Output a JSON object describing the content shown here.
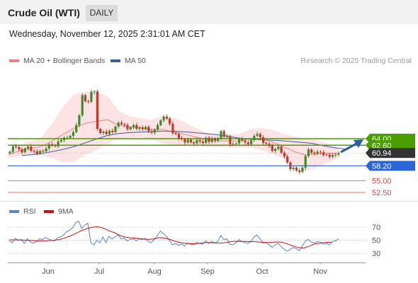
{
  "header": {
    "title": "Crude Oil (WTI)",
    "timeframe": "DAILY",
    "datetime": "Wednesday, November 12, 2025 2:31:01 AM CET"
  },
  "legend": {
    "bollinger": "MA 20 + Bollinger Bands",
    "ma50": "MA 50",
    "rsi": "RSI",
    "ma9": "9MA",
    "credit": "Research © 2025 Trading Central"
  },
  "colors": {
    "bollinger": "#f08080",
    "band_fill": "#fde3e3",
    "ma50": "#3a5fa0",
    "resistance": "#4a9e00",
    "support": "#2b66d9",
    "target": "#e04040",
    "current": "#333333",
    "rsi": "#5b80d0",
    "rsi_ma": "#d01010",
    "candle_up": "#3c8a2a",
    "candle_down": "#c0392b"
  },
  "chart_data": [
    {
      "type": "candlestick",
      "title": "",
      "x_months": [
        "Jun",
        "Jul",
        "Aug",
        "Sep",
        "Oct",
        "Nov"
      ],
      "price_levels": [
        {
          "value": 64.0,
          "label": "64.00",
          "kind": "resistance"
        },
        {
          "value": 62.6,
          "label": "62.60",
          "kind": "resistance"
        },
        {
          "value": 60.94,
          "label": "60.94",
          "kind": "current"
        },
        {
          "value": 58.2,
          "label": "58.20",
          "kind": "support"
        },
        {
          "value": 55.0,
          "label": "55.00",
          "kind": "target"
        },
        {
          "value": 52.5,
          "label": "52.50",
          "kind": "target"
        }
      ],
      "close_series": [
        61.2,
        62.4,
        62.2,
        61.7,
        61.1,
        61.9,
        62.3,
        61.4,
        61.3,
        60.8,
        61.4,
        61.3,
        61.9,
        62.8,
        62.6,
        62.4,
        63.4,
        63.7,
        64.2,
        64.2,
        64.6,
        65.4,
        66.9,
        69.0,
        73.3,
        72.0,
        71.9,
        74.0,
        74.1,
        66.1,
        65.2,
        65.5,
        65.0,
        65.7,
        65.4,
        66.6,
        67.4,
        67.1,
        66.9,
        66.0,
        66.4,
        66.9,
        66.1,
        66.4,
        66.0,
        66.5,
        65.6,
        65.3,
        65.9,
        66.9,
        67.9,
        68.7,
        68.3,
        67.2,
        65.2,
        65.0,
        64.1,
        63.9,
        63.2,
        63.8,
        63.2,
        63.0,
        63.7,
        63.4,
        63.1,
        64.2,
        63.3,
        64.0,
        63.6,
        64.0,
        65.6,
        64.4,
        64.5,
        62.8,
        62.9,
        63.0,
        63.9,
        63.6,
        63.2,
        62.8,
        63.7,
        64.6,
        65.0,
        64.3,
        63.1,
        62.9,
        62.5,
        61.4,
        61.8,
        62.3,
        61.0,
        60.2,
        58.9,
        57.5,
        57.8,
        57.2,
        56.9,
        57.8,
        60.3,
        61.7,
        61.0,
        60.8,
        61.2,
        61.1,
        60.5,
        60.6,
        60.1,
        60.5,
        60.6,
        60.9
      ],
      "ma50_series": [
        60.4,
        60.6,
        60.9,
        61.3,
        61.8,
        62.4,
        63.2,
        64.0,
        64.7,
        65.1,
        65.3,
        65.4,
        65.5,
        65.6,
        65.6,
        65.5,
        65.3,
        65.1,
        64.9,
        64.6,
        64.2,
        63.9,
        63.8,
        63.7,
        63.6,
        63.4,
        63.2,
        63.0,
        62.5,
        62.1,
        61.8
      ],
      "bb_upper": [
        61.3,
        62.5,
        63.5,
        64.2,
        67.3,
        71.0,
        73.5,
        74.0,
        73.9,
        73.2,
        70.0,
        68.8,
        68.4,
        68.0,
        68.9,
        68.5,
        67.5,
        66.3,
        65.3,
        64.8,
        64.9,
        65.0,
        66.0,
        66.3,
        65.9,
        65.0,
        64.5,
        64.0,
        63.7,
        63.0,
        62.0
      ],
      "bb_lower": [
        59.9,
        60.3,
        60.4,
        60.4,
        59.8,
        58.9,
        59.0,
        60.6,
        61.5,
        62.9,
        63.9,
        64.2,
        64.3,
        63.9,
        63.1,
        62.4,
        62.4,
        62.5,
        62.3,
        62.2,
        62.1,
        62.1,
        62.1,
        61.6,
        60.8,
        59.7,
        58.0,
        57.0,
        57.8,
        58.8,
        59.8
      ],
      "y_range": [
        52.5,
        64.0
      ]
    },
    {
      "type": "line",
      "title": "",
      "y_ticks": [
        30,
        50,
        70
      ],
      "y_range": [
        20,
        85
      ],
      "series": [
        {
          "name": "RSI",
          "values": [
            49,
            46,
            53,
            50,
            51,
            45,
            52,
            47,
            45,
            48,
            52,
            51,
            54,
            52,
            50,
            49,
            54,
            55,
            58,
            63,
            65,
            69,
            77,
            79,
            68,
            73,
            76,
            46,
            43,
            50,
            46,
            55,
            46,
            56,
            52,
            55,
            58,
            52,
            53,
            49,
            51,
            52,
            49,
            52,
            51,
            53,
            48,
            46,
            51,
            57,
            64,
            60,
            56,
            50,
            43,
            45,
            42,
            44,
            41,
            46,
            44,
            43,
            47,
            45,
            44,
            49,
            45,
            48,
            46,
            48,
            57,
            51,
            52,
            44,
            43,
            46,
            51,
            48,
            46,
            45,
            48,
            55,
            58,
            52,
            46,
            46,
            43,
            39,
            43,
            45,
            40,
            36,
            33,
            36,
            39,
            37,
            34,
            41,
            49,
            51,
            47,
            46,
            48,
            47,
            44,
            45,
            43,
            48,
            49,
            52
          ]
        },
        {
          "name": "9MA",
          "values": [
            50.5,
            50.4,
            50.3,
            50.0,
            49.5,
            49.0,
            48.9,
            49.3,
            49.9,
            51.0,
            53.5,
            56.5,
            60.5,
            64.5,
            67.8,
            70.0,
            70.5,
            68.2,
            64.3,
            61.2,
            57.0,
            54.4,
            53.6,
            52.9,
            51.8,
            51.2,
            51.9,
            54.0,
            53.2,
            51.0,
            47.8,
            46.0,
            45.0,
            44.5,
            45.0,
            46.1,
            46.3,
            45.7,
            45.6,
            46.3,
            48.1,
            48.3,
            48.1,
            47.8,
            47.8,
            47.2,
            46.5,
            46.6,
            47.3,
            47.1,
            44.4,
            41.5,
            38.9,
            38.0,
            41.0,
            44.5,
            45.6,
            46.7,
            47.0
          ]
        }
      ]
    }
  ]
}
